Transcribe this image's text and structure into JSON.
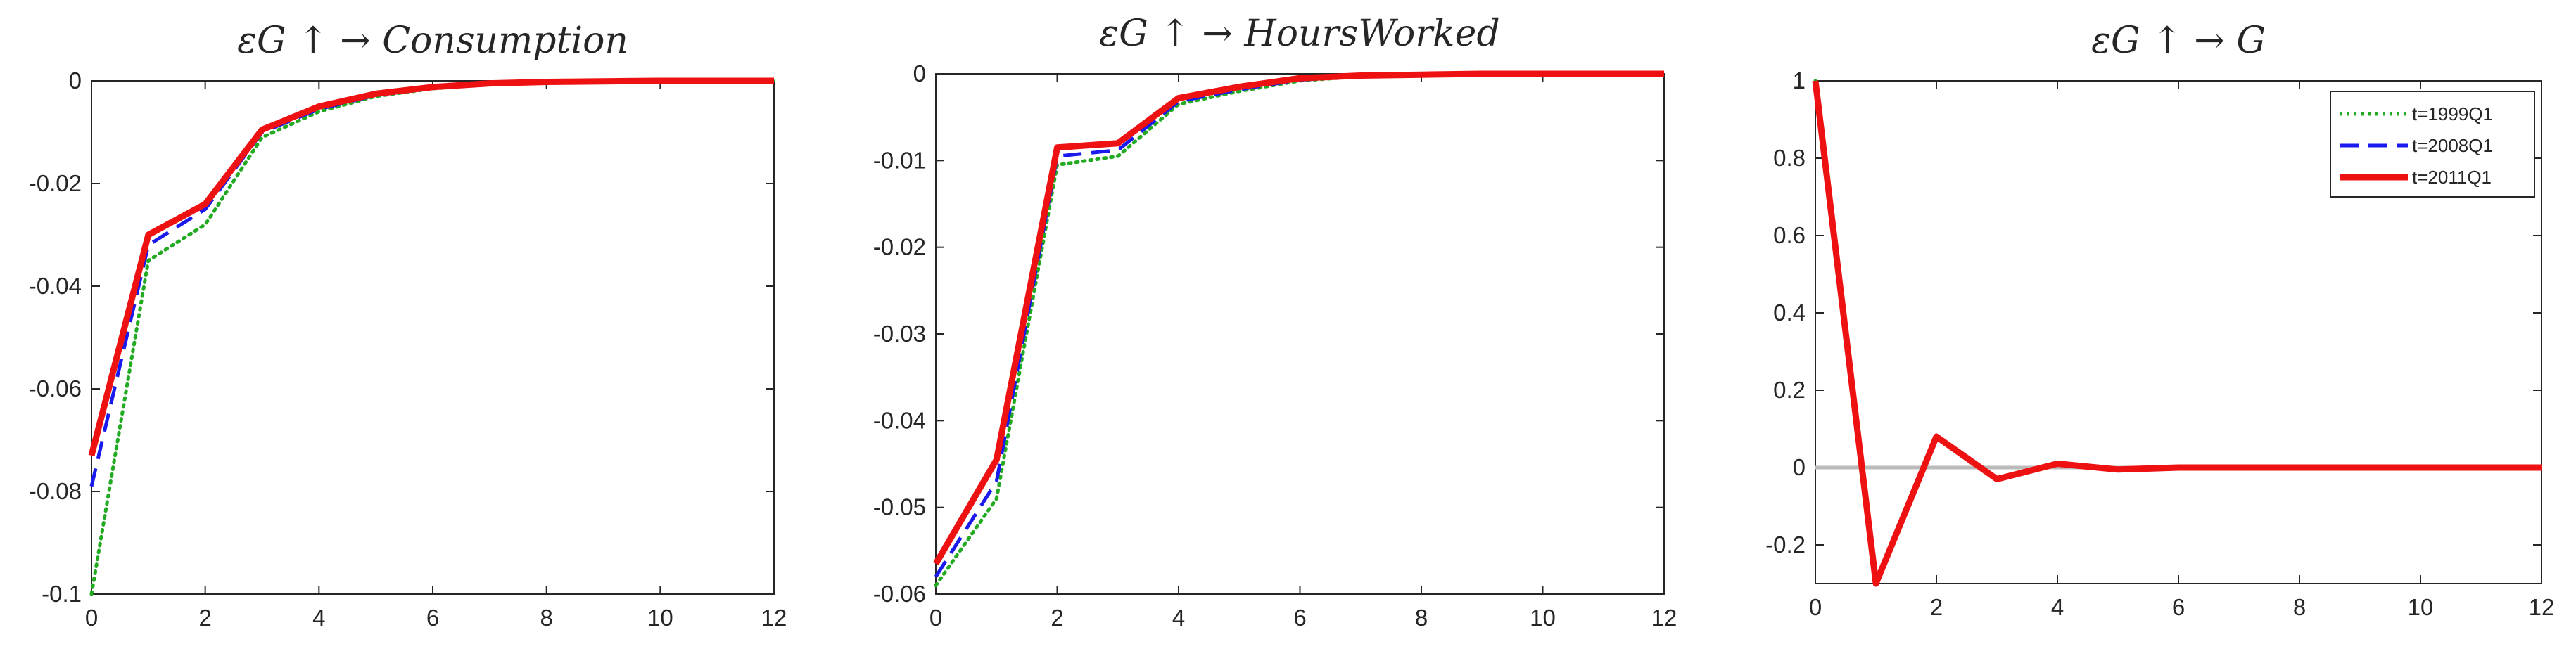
{
  "chart_data": [
    {
      "type": "line",
      "title": "εG ↑ → Consumption",
      "x": [
        0,
        1,
        2,
        3,
        4,
        5,
        6,
        7,
        8,
        9,
        10,
        11,
        12
      ],
      "xlim": [
        0,
        12
      ],
      "ylim": [
        -0.1,
        0
      ],
      "xticks": [
        "0",
        "2",
        "4",
        "6",
        "8",
        "10",
        "12"
      ],
      "yticks": [
        "0",
        "-0.02",
        "-0.04",
        "-0.06",
        "-0.08",
        "-0.1"
      ],
      "series": [
        {
          "name": "t=1999Q1",
          "color": "#22aa22",
          "style": "dotted",
          "values": [
            -0.1,
            -0.035,
            -0.028,
            -0.011,
            -0.006,
            -0.003,
            -0.0015,
            -0.0007,
            -0.0003,
            -0.0001,
            0,
            0,
            0
          ]
        },
        {
          "name": "t=2008Q1",
          "color": "#1a1aee",
          "style": "dashed",
          "values": [
            -0.079,
            -0.032,
            -0.025,
            -0.01,
            -0.0055,
            -0.0028,
            -0.0014,
            -0.0006,
            -0.0003,
            -0.0001,
            0,
            0,
            0
          ]
        },
        {
          "name": "t=2011Q1",
          "color": "#ee1111",
          "style": "solid",
          "values": [
            -0.073,
            -0.03,
            -0.024,
            -0.0095,
            -0.005,
            -0.0025,
            -0.0012,
            -0.0005,
            -0.0002,
            -0.0001,
            0,
            0,
            0
          ]
        }
      ]
    },
    {
      "type": "line",
      "title": "εG ↑ → HoursWorked",
      "x": [
        0,
        1,
        2,
        3,
        4,
        5,
        6,
        7,
        8,
        9,
        10,
        11,
        12
      ],
      "xlim": [
        0,
        12
      ],
      "ylim": [
        -0.06,
        0
      ],
      "xticks": [
        "0",
        "2",
        "4",
        "6",
        "8",
        "10",
        "12"
      ],
      "yticks": [
        "0",
        "-0.01",
        "-0.02",
        "-0.03",
        "-0.04",
        "-0.05",
        "-0.06"
      ],
      "series": [
        {
          "name": "t=1999Q1",
          "color": "#22aa22",
          "style": "dotted",
          "values": [
            -0.059,
            -0.049,
            -0.0105,
            -0.0095,
            -0.0035,
            -0.002,
            -0.0008,
            -0.0003,
            -0.0001,
            0,
            0,
            0,
            0
          ]
        },
        {
          "name": "t=2008Q1",
          "color": "#1a1aee",
          "style": "dashed",
          "values": [
            -0.058,
            -0.047,
            -0.0095,
            -0.0088,
            -0.0032,
            -0.0018,
            -0.0007,
            -0.0003,
            -0.0001,
            0,
            0,
            0,
            0
          ]
        },
        {
          "name": "t=2011Q1",
          "color": "#ee1111",
          "style": "solid",
          "values": [
            -0.0565,
            -0.0445,
            -0.0085,
            -0.008,
            -0.0028,
            -0.0015,
            -0.0005,
            -0.0002,
            -0.0001,
            0,
            0,
            0,
            0
          ]
        }
      ]
    },
    {
      "type": "line",
      "title": "εG ↑ → G",
      "x": [
        0,
        1,
        2,
        3,
        4,
        5,
        6,
        7,
        8,
        9,
        10,
        11,
        12
      ],
      "xlim": [
        0,
        12
      ],
      "ylim": [
        -0.3,
        1
      ],
      "xticks": [
        "0",
        "2",
        "4",
        "6",
        "8",
        "10",
        "12"
      ],
      "yticks": [
        "1",
        "0.8",
        "0.6",
        "0.4",
        "0.2",
        "0",
        "-0.2"
      ],
      "zero_line": true,
      "legend": {
        "position": "top-right"
      },
      "series": [
        {
          "name": "t=1999Q1",
          "color": "#22aa22",
          "style": "dotted",
          "values": [
            1,
            -0.3,
            0.08,
            -0.03,
            0.01,
            -0.005,
            0,
            0,
            0,
            0,
            0,
            0,
            0
          ]
        },
        {
          "name": "t=2008Q1",
          "color": "#1a1aee",
          "style": "dashed",
          "values": [
            1,
            -0.3,
            0.08,
            -0.03,
            0.01,
            -0.005,
            0,
            0,
            0,
            0,
            0,
            0,
            0
          ]
        },
        {
          "name": "t=2011Q1",
          "color": "#ee1111",
          "style": "solid",
          "values": [
            1,
            -0.3,
            0.08,
            -0.03,
            0.01,
            -0.005,
            0,
            0,
            0,
            0,
            0,
            0,
            0
          ]
        }
      ]
    }
  ]
}
